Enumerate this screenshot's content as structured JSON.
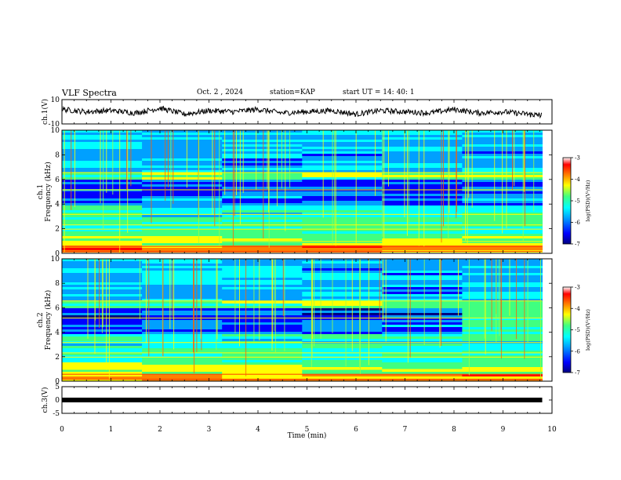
{
  "header": {
    "title": "VLF Spectra",
    "date": "Oct. 2 , 2024",
    "station": "station=KAP",
    "start": "start UT =  14: 40: 1"
  },
  "colorbar": {
    "label": "log(PSD)(V²/Hz)",
    "ticks": [
      "-3",
      "-4",
      "-5",
      "-6",
      "-7"
    ],
    "colors": [
      "#000080",
      "#0000ff",
      "#00a0ff",
      "#00ffff",
      "#40ff80",
      "#ffff00",
      "#ff8000",
      "#ff0000",
      "#ffffff"
    ]
  },
  "chart_data": [
    {
      "type": "line",
      "name": "ch1-waveform",
      "ylabel": "ch.1(V)",
      "xlim": [
        0,
        10
      ],
      "ylim": [
        -10,
        10
      ],
      "yticks": [
        "10",
        "-10"
      ],
      "x": [
        0,
        0.5,
        1,
        1.5,
        2,
        2.5,
        3,
        3.5,
        4,
        4.5,
        5,
        5.5,
        6,
        6.5,
        7,
        7.5,
        8,
        8.5,
        9,
        9.5,
        9.8
      ],
      "y": [
        2,
        0,
        1,
        -1,
        3,
        -2,
        1,
        0,
        2,
        -1,
        0,
        1,
        -2,
        1,
        0,
        -1,
        2,
        -1,
        0,
        -2,
        -3
      ]
    },
    {
      "type": "heatmap",
      "name": "ch1-spectrogram",
      "ylabel": "ch.1 Frequency (kHz)",
      "xlim": [
        0,
        10
      ],
      "ylim": [
        0,
        10
      ],
      "yticks": [
        "0",
        "2",
        "4",
        "6",
        "8",
        "10"
      ],
      "data_extent_x": [
        0,
        9.8
      ],
      "zlim": [
        -7,
        -3
      ]
    },
    {
      "type": "heatmap",
      "name": "ch2-spectrogram",
      "ylabel": "ch.2 Frequency (kHz)",
      "xlim": [
        0,
        10
      ],
      "ylim": [
        0,
        10
      ],
      "yticks": [
        "0",
        "2",
        "4",
        "6",
        "8",
        "10"
      ],
      "data_extent_x": [
        0,
        9.8
      ],
      "zlim": [
        -7,
        -3
      ]
    },
    {
      "type": "line",
      "name": "ch3-waveform",
      "ylabel": "ch.3(V)",
      "xlim": [
        0,
        10
      ],
      "ylim": [
        -5,
        5
      ],
      "yticks": [
        "5",
        "0",
        "-5"
      ],
      "x": [
        0,
        9.8
      ],
      "y": [
        0,
        0
      ]
    }
  ],
  "xaxis": {
    "label": "Time (min)",
    "ticks": [
      "0",
      "1",
      "2",
      "3",
      "4",
      "5",
      "6",
      "7",
      "8",
      "9",
      "10"
    ]
  }
}
